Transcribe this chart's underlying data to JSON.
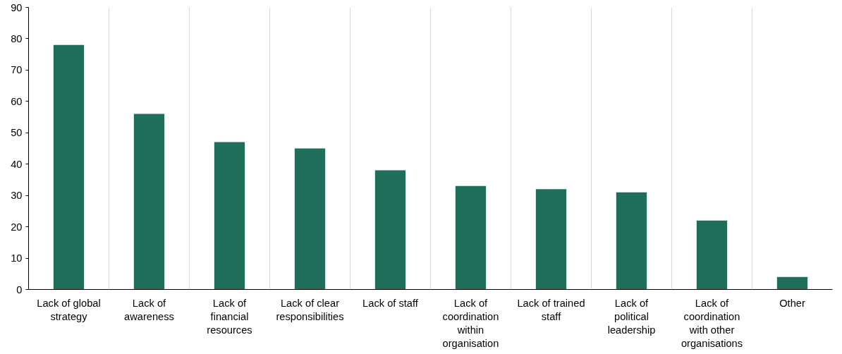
{
  "chart_data": {
    "type": "bar",
    "categories": [
      "Lack of global strategy",
      "Lack of awareness",
      "Lack of financial resources",
      "Lack of clear responsibilities",
      "Lack of staff",
      "Lack of coordination within organisation",
      "Lack of trained staff",
      "Lack of political leadership",
      "Lack of coordination with other organisations",
      "Other"
    ],
    "values": [
      78,
      56,
      47,
      45,
      38,
      33,
      32,
      31,
      22,
      4
    ],
    "color": "#1f6e5a",
    "ylim": [
      0,
      90
    ],
    "yticks": [
      0,
      10,
      20,
      30,
      40,
      50,
      60,
      70,
      80,
      90
    ],
    "grid": "x"
  }
}
